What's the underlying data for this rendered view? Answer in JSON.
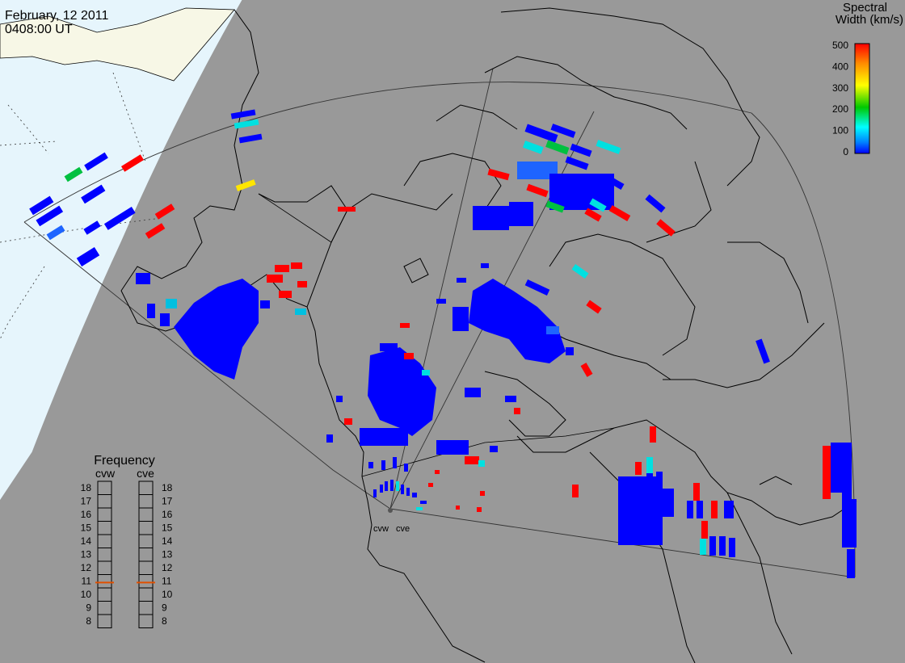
{
  "header": {
    "date": "February, 12 2011",
    "time": "0408:00 UT"
  },
  "colorbar": {
    "title_line1": "Spectral",
    "title_line2": "Width (km/s)",
    "ticks": [
      "500",
      "400",
      "300",
      "200",
      "100",
      "0"
    ],
    "stops": [
      "#ff0000",
      "#ff8c00",
      "#ffff00",
      "#00c800",
      "#00ffff",
      "#0080ff",
      "#0000ff"
    ]
  },
  "frequency": {
    "title": "Frequency",
    "radars": [
      {
        "name": "cvw",
        "selected": 11
      },
      {
        "name": "cve",
        "selected": 11
      }
    ],
    "levels": [
      "18",
      "17",
      "16",
      "15",
      "14",
      "13",
      "12",
      "11",
      "10",
      "9",
      "8"
    ]
  },
  "radar_labels": [
    "cvw",
    "cve"
  ],
  "colors": {
    "background": "#999999",
    "dayside": "#f7f7e6",
    "ice": "#e6f5fc",
    "coast": "#000000",
    "low": "#0000ff",
    "mid_low": "#1e64ff",
    "cyan": "#00e0e0",
    "green": "#00c040",
    "yellow": "#ffe600",
    "high": "#ff0000",
    "indicator": "#e05000"
  }
}
